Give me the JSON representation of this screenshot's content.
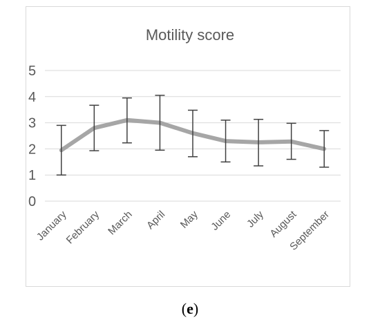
{
  "caption": {
    "open": "(",
    "letter": "e",
    "close": ")"
  },
  "colors": {
    "line": "#a6a6a6",
    "error_bars": "#404040",
    "grid": "#d9d9d9",
    "text": "#595959",
    "border": "#d9d9d9"
  },
  "chart_data": {
    "type": "line",
    "title": "Motility score",
    "xlabel": "",
    "ylabel": "",
    "categories": [
      "January",
      "February",
      "March",
      "April",
      "May",
      "June",
      "July",
      "August",
      "September"
    ],
    "series": [
      {
        "values": [
          1.95,
          2.8,
          3.1,
          3.0,
          2.6,
          2.3,
          2.25,
          2.28,
          2.0
        ],
        "error_low": [
          1.0,
          1.93,
          2.23,
          1.95,
          1.7,
          1.5,
          1.35,
          1.6,
          1.3
        ],
        "error_high": [
          2.9,
          3.67,
          3.95,
          4.05,
          3.48,
          3.1,
          3.13,
          2.98,
          2.7
        ]
      }
    ],
    "ylim": [
      0,
      5
    ],
    "yticks": [
      0,
      1,
      2,
      3,
      4,
      5
    ],
    "grid": true,
    "legend": "none"
  }
}
